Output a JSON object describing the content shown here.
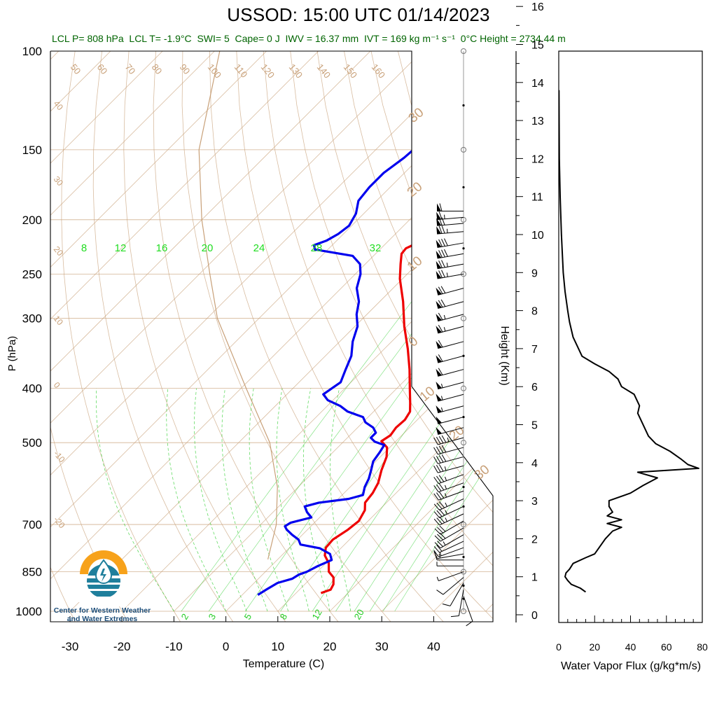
{
  "title": "USSOD: 15:00 UTC 01/14/2023",
  "subtitle": {
    "lcl_p": "LCL P= 808 hPa",
    "lcl_t": "LCL T= -1.9°C",
    "swi": "SWI= 5",
    "cape": "Cape= 0 J",
    "iwv": "IWV = 16.37 mm",
    "ivt": "IVT = 169 kg m⁻¹ s⁻¹",
    "zero_c_height": "0°C Height = 2734.44 m"
  },
  "logo": {
    "line1": "Center for Western Weather",
    "line2": "and Water Extremes"
  },
  "colors": {
    "temperature": "#ee0000",
    "dewpoint": "#0000ee",
    "dry_adiabat": "#c8a078",
    "isotherm": "#c8a078",
    "mixing_ratio": "#22cc22",
    "wind_barb": "#000000",
    "flux": "#000000"
  },
  "chart_data": [
    {
      "type": "line",
      "name": "skew-t",
      "xlabel": "Temperature (C)",
      "ylabel": "P (hPa)",
      "x_ticks": [
        "-30",
        "-20",
        "-10",
        "0",
        "10",
        "20",
        "30",
        "40"
      ],
      "x_tick_values": [
        -30,
        -20,
        -10,
        0,
        10,
        20,
        30,
        40
      ],
      "y_ticks": [
        "100",
        "150",
        "200",
        "250",
        "300",
        "400",
        "500",
        "700",
        "850",
        "1000"
      ],
      "y_tick_values": [
        100,
        150,
        200,
        250,
        300,
        400,
        500,
        700,
        850,
        1000
      ],
      "xlim": [
        -33,
        50
      ],
      "ylim": [
        1000,
        100
      ],
      "isotherm_labels": [
        "50",
        "60",
        "70",
        "80",
        "90",
        "100",
        "110",
        "120",
        "130",
        "140",
        "150",
        "160"
      ],
      "left_isotherm_labels": [
        "40",
        "30",
        "20",
        "10",
        "0",
        "-10",
        "-20"
      ],
      "dry_adiabat_labels": [
        "30",
        "20",
        "10",
        "0",
        "10",
        "20",
        "30"
      ],
      "mixing_ratio_upper_labels": [
        "8",
        "12",
        "16",
        "20",
        "24",
        "28",
        "32"
      ],
      "mixing_ratio_lower_labels": [
        "2",
        "3",
        "5",
        "8",
        "12",
        "20"
      ],
      "temperature_profile": [
        {
          "p": 928,
          "t": 14.8
        },
        {
          "p": 915,
          "t": 16.0
        },
        {
          "p": 895,
          "t": 15.5
        },
        {
          "p": 870,
          "t": 14.2
        },
        {
          "p": 850,
          "t": 12.2
        },
        {
          "p": 820,
          "t": 10.5
        },
        {
          "p": 795,
          "t": 8.3
        },
        {
          "p": 770,
          "t": 7.0
        },
        {
          "p": 745,
          "t": 6.8
        },
        {
          "p": 715,
          "t": 7.8
        },
        {
          "p": 690,
          "t": 8.2
        },
        {
          "p": 660,
          "t": 7.3
        },
        {
          "p": 640,
          "t": 5.9
        },
        {
          "p": 615,
          "t": 5.5
        },
        {
          "p": 590,
          "t": 4.6
        },
        {
          "p": 560,
          "t": 2.8
        },
        {
          "p": 530,
          "t": 1.2
        },
        {
          "p": 510,
          "t": -0.5
        },
        {
          "p": 497,
          "t": -2.8
        },
        {
          "p": 485,
          "t": -2.2
        },
        {
          "p": 470,
          "t": -2.6
        },
        {
          "p": 455,
          "t": -2.4
        },
        {
          "p": 440,
          "t": -3.0
        },
        {
          "p": 425,
          "t": -4.6
        },
        {
          "p": 400,
          "t": -7.5
        },
        {
          "p": 370,
          "t": -11.2
        },
        {
          "p": 340,
          "t": -15.5
        },
        {
          "p": 310,
          "t": -20.5
        },
        {
          "p": 280,
          "t": -25.5
        },
        {
          "p": 255,
          "t": -30.5
        },
        {
          "p": 240,
          "t": -33.2
        },
        {
          "p": 230,
          "t": -35.0
        },
        {
          "p": 225,
          "t": -35.2
        },
        {
          "p": 220,
          "t": -34.0
        },
        {
          "p": 215,
          "t": -34.5
        },
        {
          "p": 205,
          "t": -36.0
        },
        {
          "p": 195,
          "t": -37.5
        },
        {
          "p": 185,
          "t": -39.0
        },
        {
          "p": 170,
          "t": -42.0
        },
        {
          "p": 155,
          "t": -45.5
        },
        {
          "p": 145,
          "t": -48.0
        }
      ],
      "dewpoint_profile": [
        {
          "p": 935,
          "t": 3.0
        },
        {
          "p": 915,
          "t": 3.6
        },
        {
          "p": 890,
          "t": 4.5
        },
        {
          "p": 875,
          "t": 6.5
        },
        {
          "p": 860,
          "t": 7.0
        },
        {
          "p": 850,
          "t": 8.0
        },
        {
          "p": 830,
          "t": 9.0
        },
        {
          "p": 810,
          "t": 10.5
        },
        {
          "p": 790,
          "t": 9.0
        },
        {
          "p": 772,
          "t": 6.0
        },
        {
          "p": 760,
          "t": 1.5
        },
        {
          "p": 745,
          "t": 0.2
        },
        {
          "p": 730,
          "t": -2.0
        },
        {
          "p": 715,
          "t": -4.0
        },
        {
          "p": 705,
          "t": -5.0
        },
        {
          "p": 695,
          "t": -4.6
        },
        {
          "p": 680,
          "t": -1.6
        },
        {
          "p": 665,
          "t": -3.5
        },
        {
          "p": 650,
          "t": -5.0
        },
        {
          "p": 640,
          "t": -3.0
        },
        {
          "p": 630,
          "t": 2.0
        },
        {
          "p": 620,
          "t": 4.0
        },
        {
          "p": 600,
          "t": 2.8
        },
        {
          "p": 580,
          "t": 2.0
        },
        {
          "p": 560,
          "t": 0.8
        },
        {
          "p": 540,
          "t": -0.5
        },
        {
          "p": 520,
          "t": -1.0
        },
        {
          "p": 505,
          "t": -1.5
        },
        {
          "p": 498,
          "t": -4.0
        },
        {
          "p": 490,
          "t": -5.5
        },
        {
          "p": 480,
          "t": -5.5
        },
        {
          "p": 470,
          "t": -7.0
        },
        {
          "p": 460,
          "t": -9.5
        },
        {
          "p": 450,
          "t": -11.0
        },
        {
          "p": 440,
          "t": -15.0
        },
        {
          "p": 430,
          "t": -17.5
        },
        {
          "p": 420,
          "t": -21.0
        },
        {
          "p": 410,
          "t": -23.0
        },
        {
          "p": 400,
          "t": -22.5
        },
        {
          "p": 390,
          "t": -22.0
        },
        {
          "p": 370,
          "t": -23.5
        },
        {
          "p": 350,
          "t": -25.0
        },
        {
          "p": 330,
          "t": -27.5
        },
        {
          "p": 310,
          "t": -29.5
        },
        {
          "p": 295,
          "t": -32.0
        },
        {
          "p": 280,
          "t": -34.0
        },
        {
          "p": 265,
          "t": -37.0
        },
        {
          "p": 250,
          "t": -39.0
        },
        {
          "p": 240,
          "t": -41.0
        },
        {
          "p": 232,
          "t": -44.0
        },
        {
          "p": 226,
          "t": -52.5
        },
        {
          "p": 222,
          "t": -53.5
        },
        {
          "p": 218,
          "t": -52.0
        },
        {
          "p": 212,
          "t": -51.0
        },
        {
          "p": 205,
          "t": -50.5
        },
        {
          "p": 195,
          "t": -51.5
        },
        {
          "p": 185,
          "t": -53.5
        },
        {
          "p": 175,
          "t": -54.0
        },
        {
          "p": 165,
          "t": -54.0
        },
        {
          "p": 155,
          "t": -53.0
        },
        {
          "p": 145,
          "t": -52.5
        }
      ],
      "parcel_profile": [
        {
          "p": 808,
          "t": -1.9
        },
        {
          "p": 700,
          "t": -7.0
        },
        {
          "p": 600,
          "t": -14.0
        },
        {
          "p": 500,
          "t": -24.0
        },
        {
          "p": 400,
          "t": -39.0
        },
        {
          "p": 300,
          "t": -58.0
        },
        {
          "p": 250,
          "t": -68.0
        },
        {
          "p": 200,
          "t": -80.0
        },
        {
          "p": 150,
          "t": -94.0
        },
        {
          "p": 100,
          "t": -109.0
        }
      ]
    },
    {
      "type": "line",
      "name": "water-vapor-flux",
      "xlabel": "Water Vapor Flux (g/kg*m/s)",
      "ylabel": "Height (Km)",
      "x_ticks": [
        "0",
        "20",
        "40",
        "60",
        "80"
      ],
      "x_tick_values": [
        0,
        20,
        40,
        60,
        80
      ],
      "y_ticks": [
        "0",
        "1",
        "2",
        "3",
        "4",
        "5",
        "6",
        "7",
        "8",
        "9",
        "10",
        "11",
        "12",
        "13",
        "14",
        "15",
        "16"
      ],
      "y_tick_values": [
        0,
        1,
        2,
        3,
        4,
        5,
        6,
        7,
        8,
        9,
        10,
        11,
        12,
        13,
        14,
        15,
        16
      ],
      "xlim": [
        0,
        80
      ],
      "ylim": [
        -0.2,
        16.3
      ],
      "values": [
        {
          "h": 0.6,
          "v": 15
        },
        {
          "h": 0.7,
          "v": 12
        },
        {
          "h": 0.8,
          "v": 7
        },
        {
          "h": 0.9,
          "v": 5
        },
        {
          "h": 1.0,
          "v": 3.5
        },
        {
          "h": 1.1,
          "v": 4
        },
        {
          "h": 1.2,
          "v": 6
        },
        {
          "h": 1.35,
          "v": 8
        },
        {
          "h": 1.5,
          "v": 15
        },
        {
          "h": 1.6,
          "v": 20
        },
        {
          "h": 1.8,
          "v": 23
        },
        {
          "h": 2.0,
          "v": 26
        },
        {
          "h": 2.2,
          "v": 30
        },
        {
          "h": 2.3,
          "v": 35
        },
        {
          "h": 2.4,
          "v": 27
        },
        {
          "h": 2.5,
          "v": 35
        },
        {
          "h": 2.6,
          "v": 27
        },
        {
          "h": 2.7,
          "v": 30
        },
        {
          "h": 2.85,
          "v": 28
        },
        {
          "h": 3.0,
          "v": 28
        },
        {
          "h": 3.2,
          "v": 40
        },
        {
          "h": 3.4,
          "v": 47
        },
        {
          "h": 3.6,
          "v": 55
        },
        {
          "h": 3.75,
          "v": 44
        },
        {
          "h": 3.85,
          "v": 78
        },
        {
          "h": 3.95,
          "v": 72
        },
        {
          "h": 4.1,
          "v": 68
        },
        {
          "h": 4.3,
          "v": 62
        },
        {
          "h": 4.5,
          "v": 54
        },
        {
          "h": 4.7,
          "v": 50
        },
        {
          "h": 4.9,
          "v": 48
        },
        {
          "h": 5.1,
          "v": 46
        },
        {
          "h": 5.3,
          "v": 44
        },
        {
          "h": 5.5,
          "v": 45
        },
        {
          "h": 5.8,
          "v": 42
        },
        {
          "h": 6.0,
          "v": 35
        },
        {
          "h": 6.2,
          "v": 33
        },
        {
          "h": 6.4,
          "v": 28
        },
        {
          "h": 6.6,
          "v": 20
        },
        {
          "h": 6.8,
          "v": 13
        },
        {
          "h": 7.0,
          "v": 11
        },
        {
          "h": 7.3,
          "v": 8
        },
        {
          "h": 7.7,
          "v": 6
        },
        {
          "h": 8.0,
          "v": 5
        },
        {
          "h": 8.5,
          "v": 3.5
        },
        {
          "h": 9.0,
          "v": 2.5
        },
        {
          "h": 10.0,
          "v": 1.5
        },
        {
          "h": 11.0,
          "v": 0.8
        },
        {
          "h": 12.0,
          "v": 0.3
        },
        {
          "h": 13.0,
          "v": 0.2
        },
        {
          "h": 13.8,
          "v": 0.1
        }
      ]
    }
  ],
  "wind_barbs": [
    {
      "p": 940,
      "spd": 10,
      "dir": 160
    },
    {
      "p": 915,
      "spd": 10,
      "dir": 190
    },
    {
      "p": 890,
      "spd": 10,
      "dir": 210
    },
    {
      "p": 870,
      "spd": 10,
      "dir": 230
    },
    {
      "p": 850,
      "spd": 5,
      "dir": 250
    },
    {
      "p": 830,
      "spd": 5,
      "dir": 270
    },
    {
      "p": 810,
      "spd": 10,
      "dir": 270
    },
    {
      "p": 790,
      "spd": 15,
      "dir": 260
    },
    {
      "p": 770,
      "spd": 15,
      "dir": 250
    },
    {
      "p": 750,
      "spd": 20,
      "dir": 245
    },
    {
      "p": 730,
      "spd": 25,
      "dir": 240
    },
    {
      "p": 710,
      "spd": 30,
      "dir": 240
    },
    {
      "p": 690,
      "spd": 30,
      "dir": 240
    },
    {
      "p": 670,
      "spd": 35,
      "dir": 245
    },
    {
      "p": 650,
      "spd": 35,
      "dir": 245
    },
    {
      "p": 630,
      "spd": 35,
      "dir": 245
    },
    {
      "p": 610,
      "spd": 35,
      "dir": 250
    },
    {
      "p": 590,
      "spd": 35,
      "dir": 250
    },
    {
      "p": 570,
      "spd": 35,
      "dir": 250
    },
    {
      "p": 550,
      "spd": 35,
      "dir": 255
    },
    {
      "p": 530,
      "spd": 40,
      "dir": 255
    },
    {
      "p": 510,
      "spd": 40,
      "dir": 255
    },
    {
      "p": 490,
      "spd": 45,
      "dir": 255
    },
    {
      "p": 470,
      "spd": 50,
      "dir": 255
    },
    {
      "p": 450,
      "spd": 50,
      "dir": 255
    },
    {
      "p": 430,
      "spd": 55,
      "dir": 255
    },
    {
      "p": 410,
      "spd": 55,
      "dir": 255
    },
    {
      "p": 390,
      "spd": 55,
      "dir": 255
    },
    {
      "p": 370,
      "spd": 60,
      "dir": 255
    },
    {
      "p": 350,
      "spd": 60,
      "dir": 255
    },
    {
      "p": 330,
      "spd": 60,
      "dir": 255
    },
    {
      "p": 310,
      "spd": 65,
      "dir": 255
    },
    {
      "p": 295,
      "spd": 65,
      "dir": 255
    },
    {
      "p": 280,
      "spd": 70,
      "dir": 255
    },
    {
      "p": 265,
      "spd": 70,
      "dir": 255
    },
    {
      "p": 250,
      "spd": 75,
      "dir": 260
    },
    {
      "p": 240,
      "spd": 75,
      "dir": 260
    },
    {
      "p": 230,
      "spd": 80,
      "dir": 260
    },
    {
      "p": 220,
      "spd": 80,
      "dir": 260
    },
    {
      "p": 210,
      "spd": 75,
      "dir": 265
    },
    {
      "p": 203,
      "spd": 70,
      "dir": 265
    },
    {
      "p": 198,
      "spd": 65,
      "dir": 265
    },
    {
      "p": 193,
      "spd": 60,
      "dir": 270
    }
  ]
}
